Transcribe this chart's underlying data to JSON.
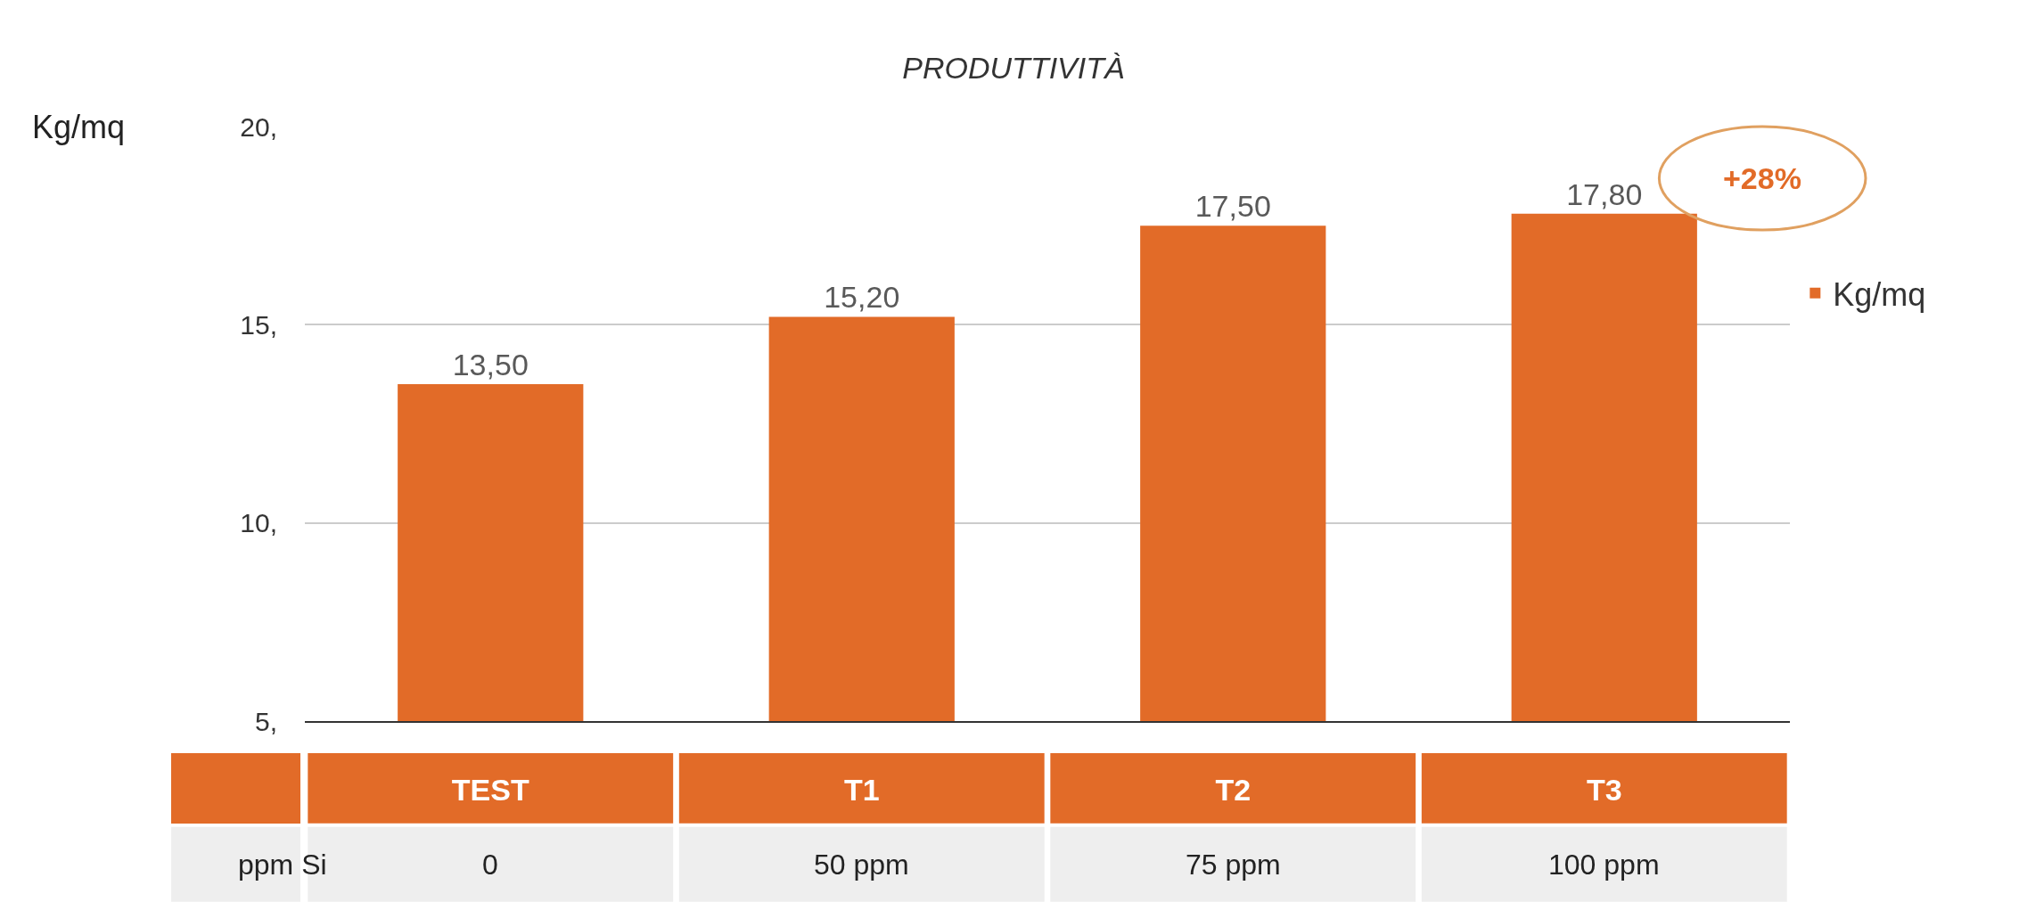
{
  "chart_data": {
    "type": "bar",
    "title": "PRODUTTIVITÀ",
    "ylabel": "Kg/mq",
    "categories": [
      "TEST",
      "T1",
      "T2",
      "T3"
    ],
    "series": [
      {
        "name": "Kg/mq",
        "color": "#e26b28",
        "values": [
          13.5,
          15.2,
          17.5,
          17.8
        ],
        "value_labels": [
          "13,50",
          "15,20",
          "17,50",
          "17,80"
        ]
      }
    ],
    "ylim": [
      5,
      20
    ],
    "yticks": [
      {
        "value": 5,
        "label": "5,"
      },
      {
        "value": 10,
        "label": "10,"
      },
      {
        "value": 15,
        "label": "15,"
      },
      {
        "value": 20,
        "label": "20,"
      }
    ],
    "grid": "y",
    "legend": "right",
    "annotations": [
      "+28%",
      "ppm Si",
      "0",
      "50 ppm",
      "75 ppm",
      "100 ppm"
    ]
  }
}
